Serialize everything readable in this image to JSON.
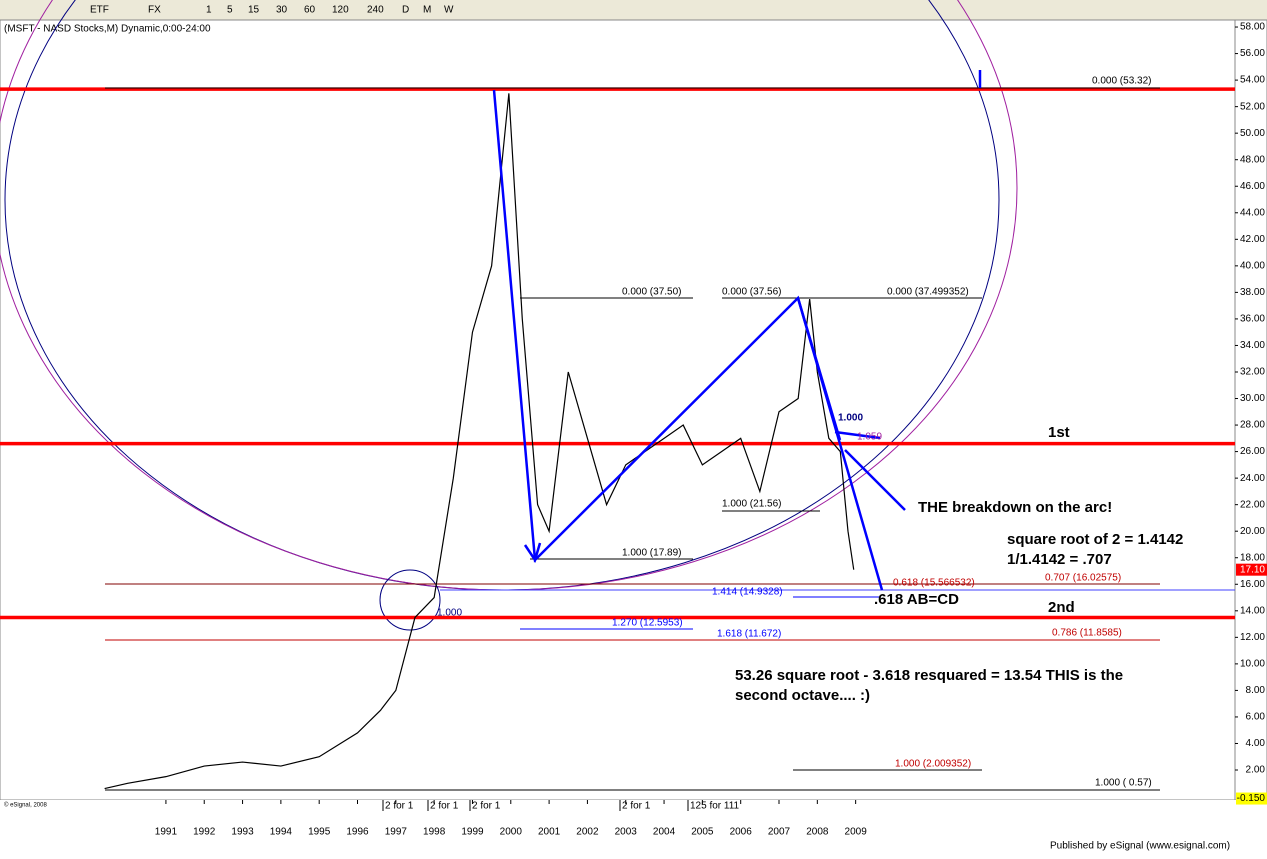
{
  "toolbar": {
    "items": [
      "ETF",
      "FX",
      "1",
      "5",
      "15",
      "30",
      "60",
      "120",
      "240",
      "D",
      "M",
      "W"
    ]
  },
  "chart_data": {
    "type": "line",
    "title": "(MSFT - NASD Stocks,M) Dynamic,0:00-24:00",
    "x": [
      1989.4,
      1990,
      1991,
      1992,
      1993,
      1994,
      1995,
      1996,
      1996.6,
      1997,
      1997.5,
      1998,
      1998.5,
      1999,
      1999.5,
      1999.95,
      2000.3,
      2000.7,
      2001,
      2001.5,
      2002,
      2002.5,
      2003,
      2003.5,
      2004,
      2004.5,
      2005,
      2005.5,
      2006,
      2006.5,
      2007,
      2007.5,
      2007.8,
      2008,
      2008.3,
      2008.6,
      2008.8,
      2008.95
    ],
    "series": [
      {
        "name": "MSFT",
        "color": "#000000",
        "values": [
          0.6,
          1.0,
          1.5,
          2.3,
          2.6,
          2.3,
          3.0,
          4.8,
          6.5,
          8,
          13.5,
          15,
          24,
          35,
          40,
          53,
          36,
          22,
          20,
          32,
          27,
          22,
          25,
          26,
          27,
          28,
          25,
          26,
          27,
          23,
          29,
          30,
          37.5,
          32,
          27,
          26,
          20,
          17.1
        ]
      }
    ],
    "xlim": [
      1986.67,
      2018.9
    ],
    "xticks": [
      1991,
      1992,
      1993,
      1994,
      1995,
      1996,
      1997,
      1998,
      1999,
      2000,
      2001,
      2002,
      2003,
      2004,
      2005,
      2006,
      2007,
      2008,
      2009
    ],
    "ylim": [
      -0.26,
      58.53
    ],
    "yticks": [
      {
        "value": 58,
        "label": "58.00"
      },
      {
        "value": 56,
        "label": "56.00"
      },
      {
        "value": 54,
        "label": "54.00"
      },
      {
        "value": 52,
        "label": "52.00"
      },
      {
        "value": 50,
        "label": "50.00"
      },
      {
        "value": 48,
        "label": "48.00"
      },
      {
        "value": 46,
        "label": "46.00"
      },
      {
        "value": 44,
        "label": "44.00"
      },
      {
        "value": 42,
        "label": "42.00"
      },
      {
        "value": 40,
        "label": "40.00"
      },
      {
        "value": 38,
        "label": "38.00"
      },
      {
        "value": 36,
        "label": "36.00"
      },
      {
        "value": 34,
        "label": "34.00"
      },
      {
        "value": 32,
        "label": "32.00"
      },
      {
        "value": 30,
        "label": "30.00"
      },
      {
        "value": 28,
        "label": "28.00"
      },
      {
        "value": 26,
        "label": "26.00"
      },
      {
        "value": 24,
        "label": "24.00"
      },
      {
        "value": 22,
        "label": "22.00"
      },
      {
        "value": 20,
        "label": "20.00"
      },
      {
        "value": 18,
        "label": "18.00"
      },
      {
        "value": 16,
        "label": "16.00"
      },
      {
        "value": 14,
        "label": "14.00"
      },
      {
        "value": 12,
        "label": "12.00"
      },
      {
        "value": 10,
        "label": "10.00"
      },
      {
        "value": 8,
        "label": "8.00"
      },
      {
        "value": 6,
        "label": "6.00"
      },
      {
        "value": 4,
        "label": "4.00"
      },
      {
        "value": 2,
        "label": "2.00"
      }
    ],
    "last_price": {
      "value": 17.1,
      "label": "17.10"
    },
    "low_mark": {
      "value": -0.15,
      "label": "-0.150"
    },
    "levels": [
      {
        "value": 53.32,
        "color": "#ff0000"
      },
      {
        "value": 26.6,
        "color": "#ff0000"
      },
      {
        "value": 13.5,
        "color": "#ff0000"
      }
    ],
    "annotations": [
      "0.000 (53.32)",
      "0.000 (37.50)",
      "0.000 (37.56)",
      "0.000 (37.499352)",
      "1.000",
      "1.059",
      "1st",
      "THE breakdown on the arc!",
      "square root of 2 = 1.4142",
      "1/1.4142 = .707",
      "1.000 (21.56)",
      "1.000 (17.89)",
      "0.618 (15.566532)",
      "0.707 (16.02575)",
      "1.414 (14.9328)",
      ".618 AB=CD",
      "2nd",
      "1.000",
      "1.270 (12.5953)",
      "1.618 (11.672)",
      "0.786 (11.8585)",
      "53.26 square root - 3.618 resquared = 13.54 THIS is the",
      "second octave....   :)",
      "1.000 (2.009352)",
      "1.000 ( 0.57)"
    ],
    "splits": [
      "2 for 1",
      "2 for 1",
      "2 for 1",
      "2 for 1",
      "125 for 111"
    ],
    "credit": "© eSignal, 2008",
    "publisher": "Published by eSignal (www.esignal.com)"
  }
}
